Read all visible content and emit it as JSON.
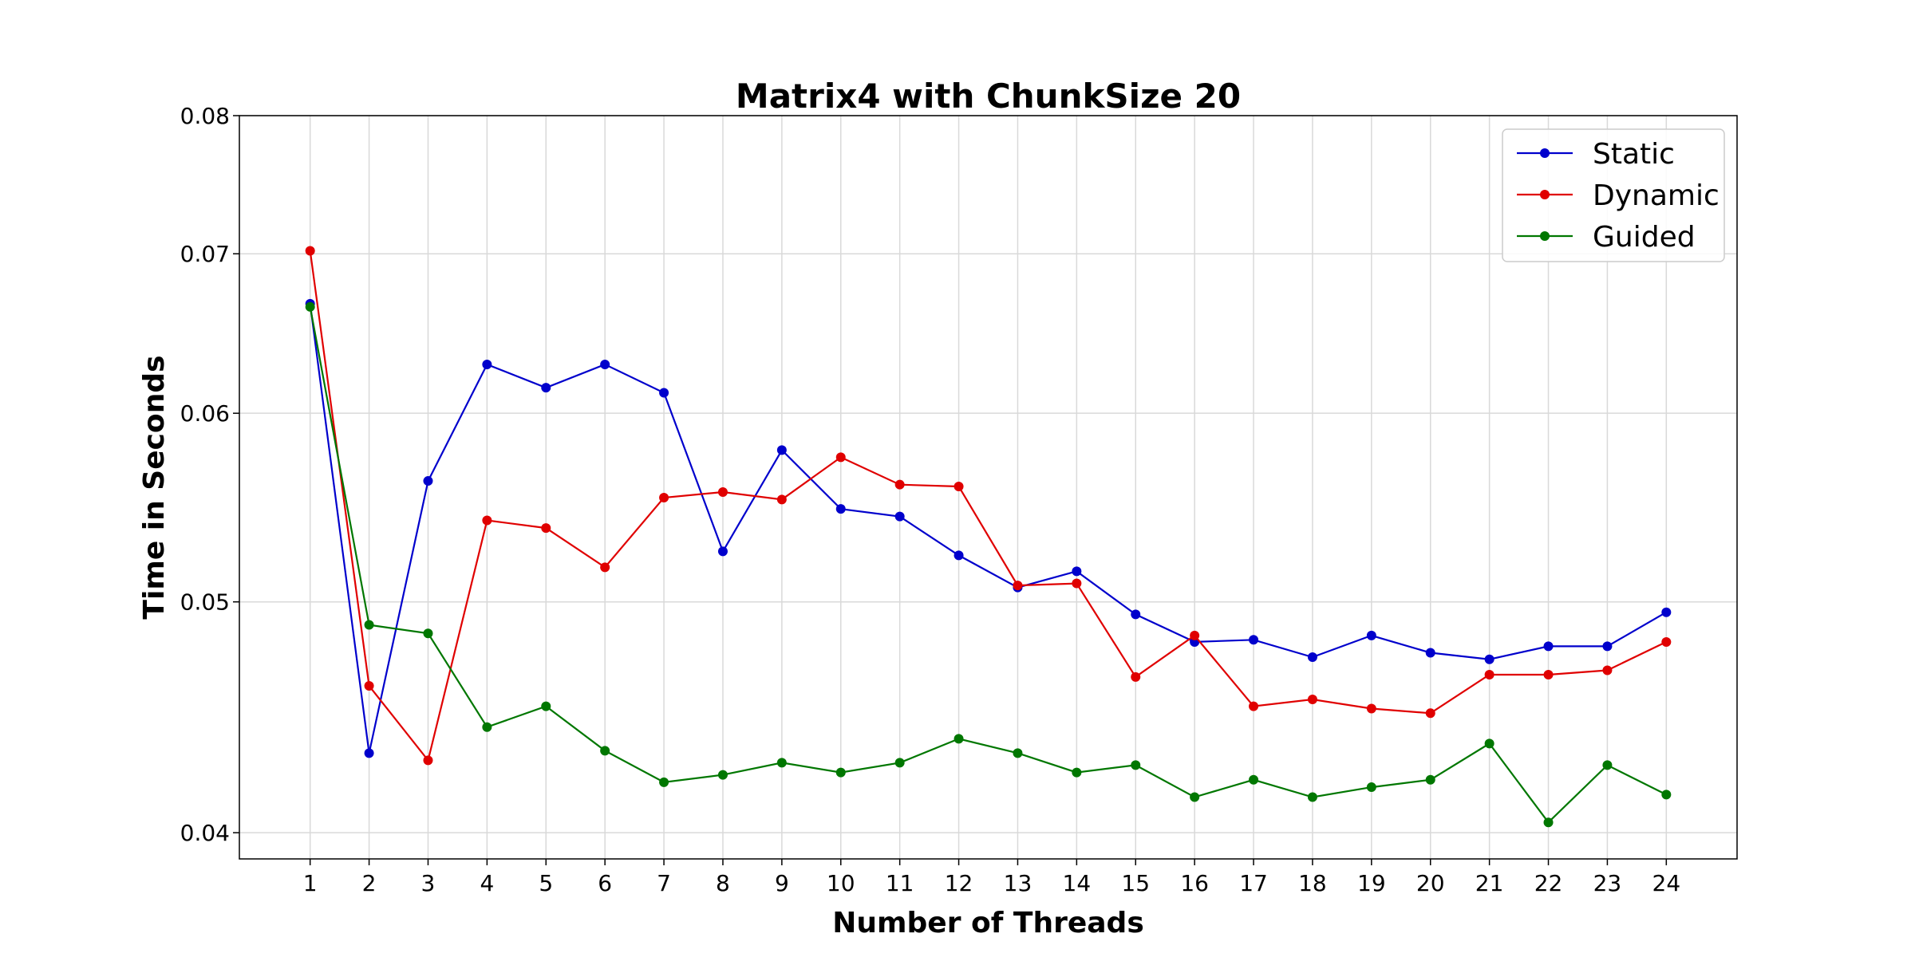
{
  "chart_data": {
    "type": "line",
    "title": "Matrix4 with ChunkSize 20",
    "xlabel": "Number of Threads",
    "ylabel": "Time in Seconds",
    "y_scale": "log",
    "ylim": [
      0.039,
      0.08
    ],
    "xlim": [
      -0.2,
      25.2
    ],
    "grid": true,
    "legend_position": "top-right",
    "x": [
      1,
      2,
      3,
      4,
      5,
      6,
      7,
      8,
      9,
      10,
      11,
      12,
      13,
      14,
      15,
      16,
      17,
      18,
      19,
      20,
      21,
      22,
      23,
      24
    ],
    "x_ticks": [
      "1",
      "2",
      "3",
      "4",
      "5",
      "6",
      "7",
      "8",
      "9",
      "10",
      "11",
      "12",
      "13",
      "14",
      "15",
      "16",
      "17",
      "18",
      "19",
      "20",
      "21",
      "22",
      "23",
      "24"
    ],
    "y_ticks": [
      {
        "value": 0.04,
        "label": "0.04"
      },
      {
        "value": 0.05,
        "label": "0.05"
      },
      {
        "value": 0.06,
        "label": "0.06"
      },
      {
        "value": 0.07,
        "label": "0.07"
      },
      {
        "value": 0.08,
        "label": "0.08"
      }
    ],
    "series": [
      {
        "name": "Static",
        "color": "#0000cc",
        "values": [
          0.0667,
          0.0432,
          0.0562,
          0.0629,
          0.0615,
          0.0629,
          0.0612,
          0.0525,
          0.0579,
          0.0547,
          0.0543,
          0.0523,
          0.0507,
          0.0515,
          0.0494,
          0.0481,
          0.0482,
          0.0474,
          0.0484,
          0.0476,
          0.0473,
          0.0479,
          0.0479,
          0.0495
        ]
      },
      {
        "name": "Dynamic",
        "color": "#e00000",
        "values": [
          0.0702,
          0.0461,
          0.0429,
          0.0541,
          0.0537,
          0.0517,
          0.0553,
          0.0556,
          0.0552,
          0.0575,
          0.056,
          0.0559,
          0.0508,
          0.0509,
          0.0465,
          0.0484,
          0.0452,
          0.0455,
          0.0451,
          0.0449,
          0.0466,
          0.0466,
          0.0468,
          0.0481
        ]
      },
      {
        "name": "Guided",
        "color": "#007700",
        "values": [
          0.0665,
          0.0489,
          0.0485,
          0.0443,
          0.0452,
          0.0433,
          0.042,
          0.0423,
          0.0428,
          0.0424,
          0.0428,
          0.0438,
          0.0432,
          0.0424,
          0.0427,
          0.0414,
          0.0421,
          0.0414,
          0.0418,
          0.0421,
          0.0436,
          0.0404,
          0.0427,
          0.0415
        ]
      }
    ]
  }
}
